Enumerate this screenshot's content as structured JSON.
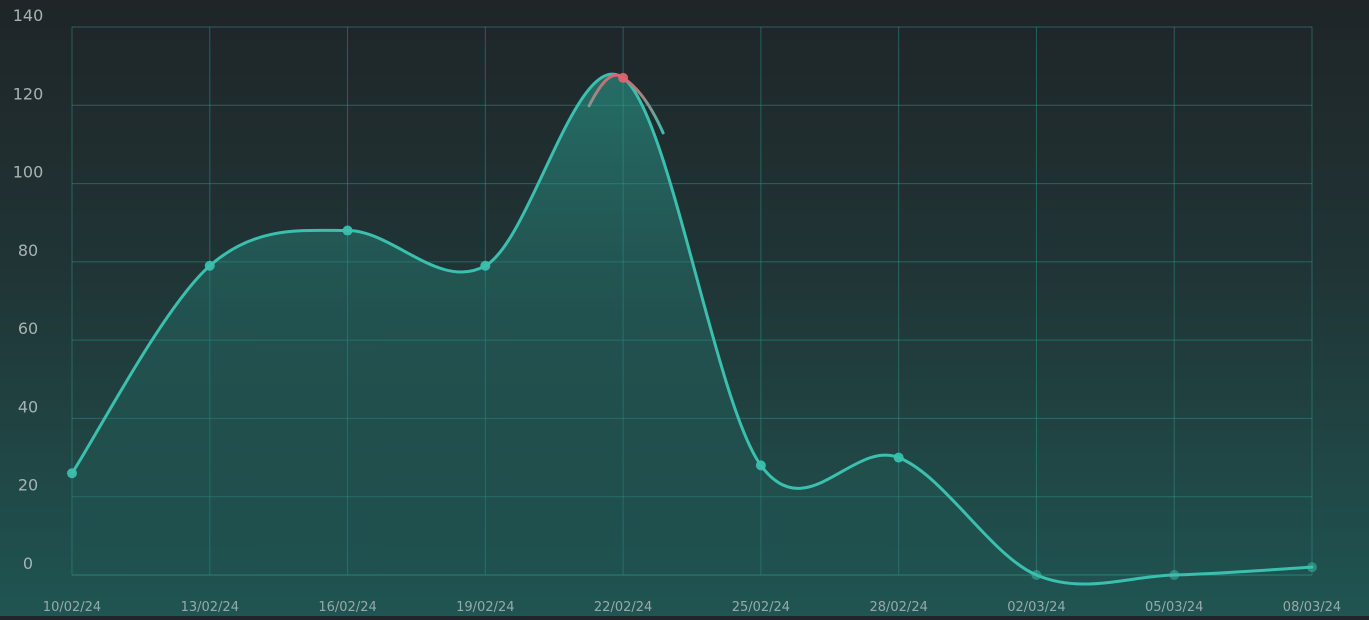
{
  "chart_data": {
    "type": "area",
    "title": "",
    "xlabel": "",
    "ylabel": "",
    "x": [
      "10/02/24",
      "13/02/24",
      "16/02/24",
      "19/02/24",
      "22/02/24",
      "25/02/24",
      "28/02/24",
      "02/03/24",
      "05/03/24",
      "08/03/24"
    ],
    "series": [
      {
        "name": "",
        "values": [
          26,
          79,
          88,
          79,
          127,
          28,
          30,
          0,
          0,
          2
        ]
      }
    ],
    "ylim": [
      0,
      140
    ],
    "yticks": [
      "0",
      "20",
      "40",
      "60",
      "80",
      "100",
      "120",
      "140"
    ],
    "grid": true,
    "legend": "none",
    "colors": {
      "line": "#3bbfae",
      "peak": "#d9666e",
      "grid": "#2f8f84",
      "area_top": "#2aa596",
      "area_bottom": "#1f5552"
    }
  }
}
